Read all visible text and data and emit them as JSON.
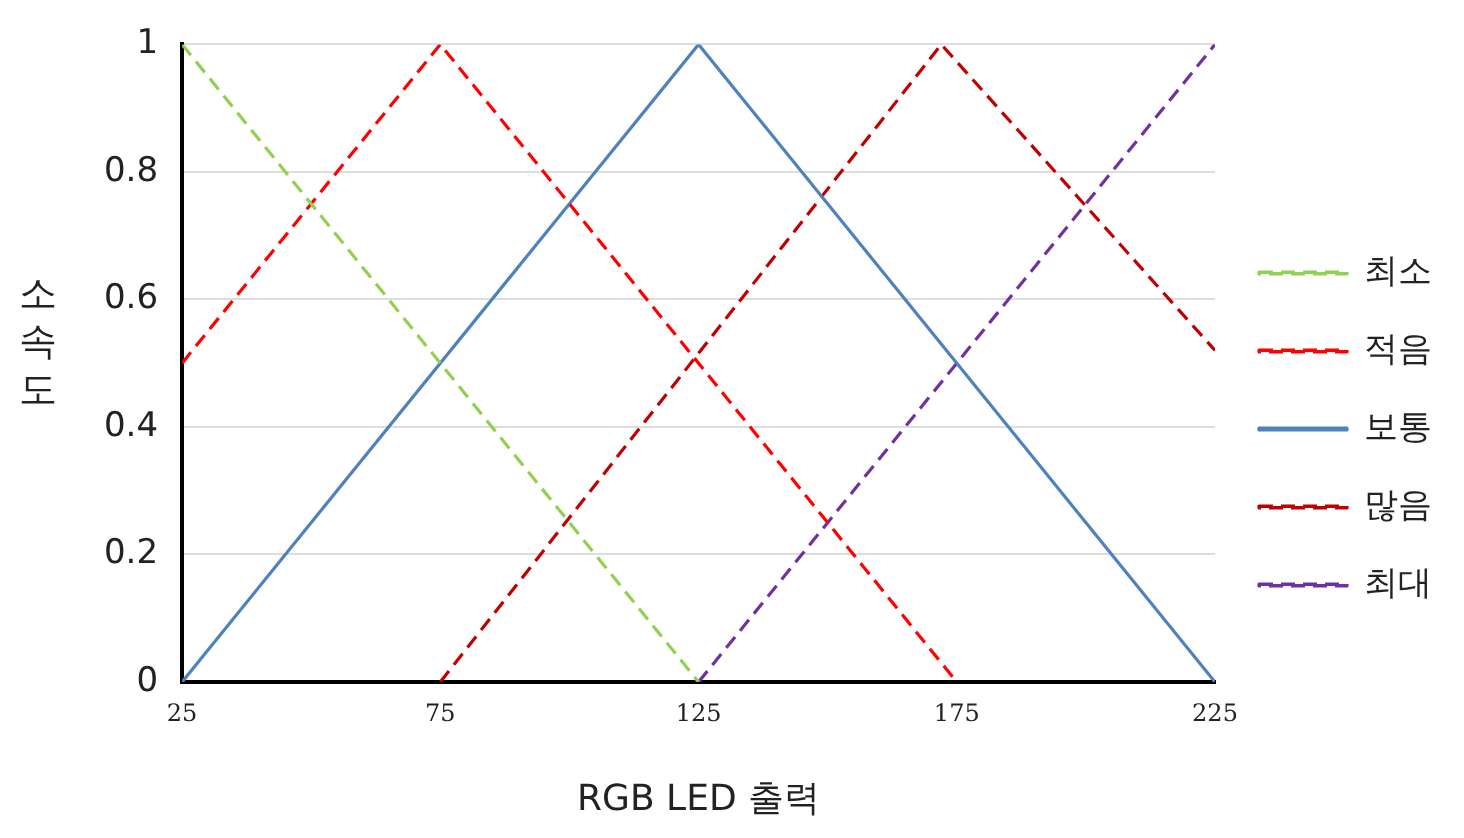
{
  "chart_data": {
    "type": "line",
    "xlabel": "RGB LED 출력",
    "ylabel": "소속도",
    "xlim": [
      25,
      225
    ],
    "xticks": [
      25,
      75,
      125,
      175,
      225
    ],
    "ylim": [
      0,
      1
    ],
    "yticks": [
      0,
      0.2,
      0.4,
      0.6,
      0.8,
      1
    ],
    "grid": "y",
    "legend": "right",
    "marker": "none",
    "series": [
      {
        "name": "최소",
        "color": "#92d050",
        "line_style": "dashed",
        "x": [
          25,
          125
        ],
        "values": [
          1,
          0
        ]
      },
      {
        "name": "적음",
        "color": "#ff0000",
        "line_style": "dashed",
        "x": [
          25,
          75,
          175
        ],
        "values": [
          0.5,
          1,
          0
        ]
      },
      {
        "name": "보통",
        "color": "#4f81bd",
        "line_style": "solid",
        "x": [
          25,
          125,
          225
        ],
        "values": [
          0,
          1,
          0
        ]
      },
      {
        "name": "많음",
        "color": "#c00000",
        "line_style": "dashed",
        "x": [
          75,
          172,
          225
        ],
        "values": [
          0,
          1,
          0.52
        ]
      },
      {
        "name": "최대",
        "color": "#7030a0",
        "line_style": "dashed",
        "x": [
          125,
          225
        ],
        "values": [
          0,
          1
        ]
      }
    ]
  }
}
